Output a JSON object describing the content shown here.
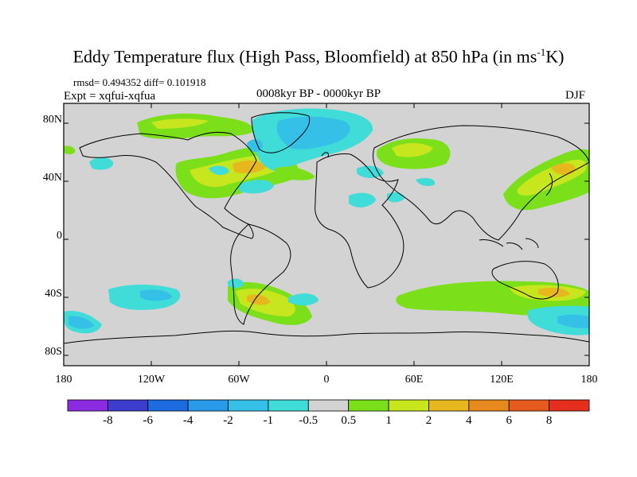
{
  "title_main": "Eddy Temperature flux (High Pass, Bloomfield) at 850 hPa (in ms",
  "title_sup": "-1",
  "title_end": "K)",
  "stats": "rmsd= 0.494352 diff= 0.101918",
  "expt": "Expt = xqfui-xqfua",
  "period": "0008kyr BP - 0000kyr BP",
  "season": "DJF",
  "map": {
    "lat_labels": [
      "80N",
      "40N",
      "0",
      "40S",
      "80S"
    ],
    "lon_labels": [
      "180",
      "120W",
      "60W",
      "0",
      "60E",
      "120E",
      "180"
    ],
    "background_color": "#d3d3d3"
  },
  "colorbar": {
    "labels": [
      "-8",
      "-6",
      "-4",
      "-2",
      "-1",
      "-0.5",
      "0.5",
      "1",
      "2",
      "4",
      "6",
      "8"
    ],
    "colors": [
      "#8a2be2",
      "#3c3ccf",
      "#1c6be0",
      "#2a9be8",
      "#35c0e8",
      "#3fdcd8",
      "#d3d3d3",
      "#7be01a",
      "#c8e61e",
      "#e6b81e",
      "#e68a1e",
      "#e65a1e",
      "#e62e1e"
    ]
  }
}
